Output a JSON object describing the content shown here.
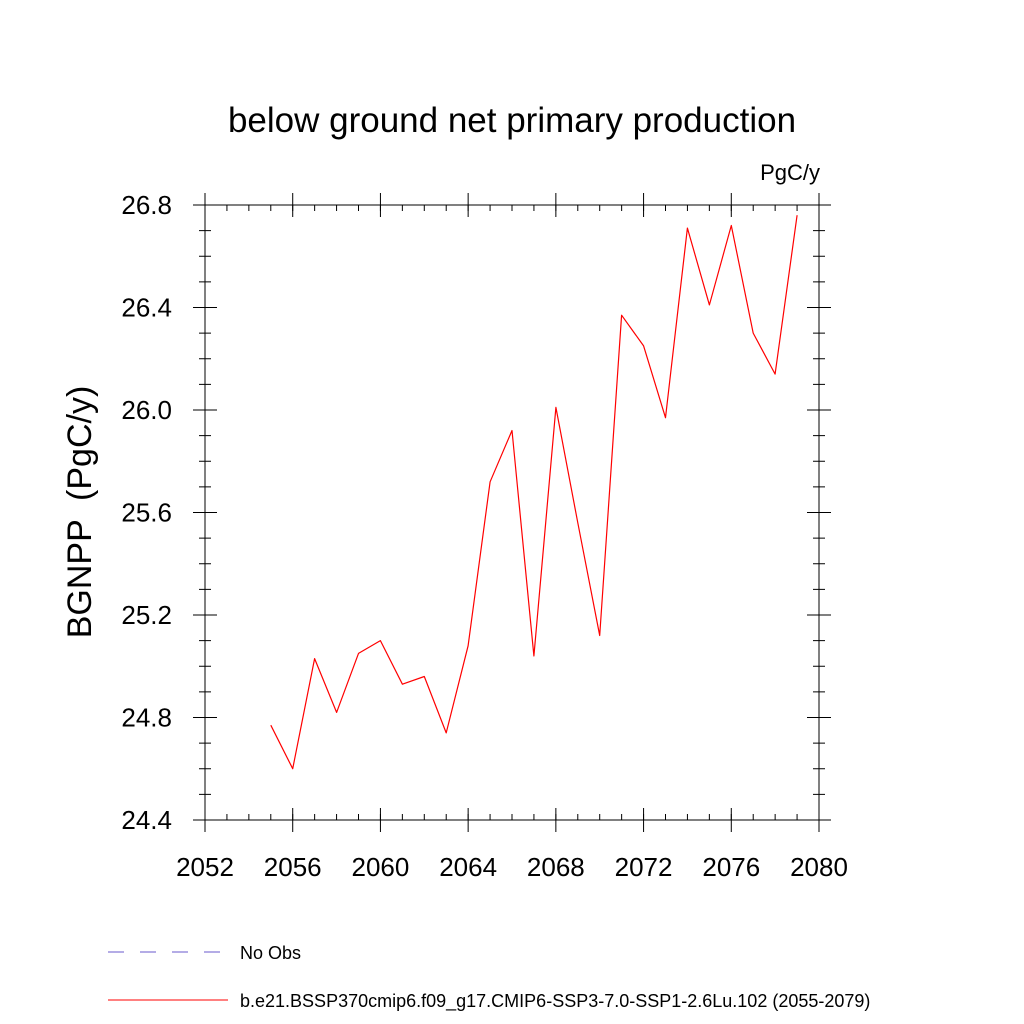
{
  "chart_data": {
    "type": "line",
    "title": "below ground net primary production",
    "unit_label": "PgC/y",
    "ylabel": "BGNPP  (PgC/y)",
    "xlabel": "",
    "xlim": [
      2052,
      2080
    ],
    "ylim": [
      24.4,
      26.8
    ],
    "x_ticks": [
      "2052",
      "2056",
      "2060",
      "2064",
      "2068",
      "2072",
      "2076",
      "2080"
    ],
    "y_ticks": [
      "24.4",
      "24.8",
      "25.2",
      "25.6",
      "26.0",
      "26.4",
      "26.8"
    ],
    "x_tick_values": [
      2052,
      2056,
      2060,
      2064,
      2068,
      2072,
      2076,
      2080
    ],
    "y_tick_values": [
      24.4,
      24.8,
      25.2,
      25.6,
      26.0,
      26.4,
      26.8
    ],
    "x_minor_step": 1,
    "y_minor_step": 0.1,
    "grid": false,
    "legend_position": "bottom",
    "series": [
      {
        "name": "b.e21.BSSP370cmip6.f09_g17.CMIP6-SSP3-7.0-SSP1-2.6Lu.102 (2055-2079)",
        "color": "#ff0000",
        "x": [
          2055,
          2056,
          2057,
          2058,
          2059,
          2060,
          2061,
          2062,
          2063,
          2064,
          2065,
          2066,
          2067,
          2068,
          2069,
          2070,
          2071,
          2072,
          2073,
          2074,
          2075,
          2076,
          2077,
          2078,
          2079
        ],
        "values": [
          24.77,
          24.6,
          25.03,
          24.82,
          25.05,
          25.1,
          24.93,
          24.96,
          24.74,
          25.08,
          25.72,
          25.92,
          25.04,
          26.01,
          25.56,
          25.12,
          26.37,
          26.25,
          25.97,
          26.71,
          26.41,
          26.72,
          26.3,
          26.14,
          26.76
        ]
      }
    ],
    "legend": [
      {
        "label": "No Obs",
        "color": "#6a5acd",
        "style": "dashed"
      },
      {
        "label": "b.e21.BSSP370cmip6.f09_g17.CMIP6-SSP3-7.0-SSP1-2.6Lu.102 (2055-2079)",
        "color": "#ff0000",
        "style": "solid"
      }
    ]
  }
}
